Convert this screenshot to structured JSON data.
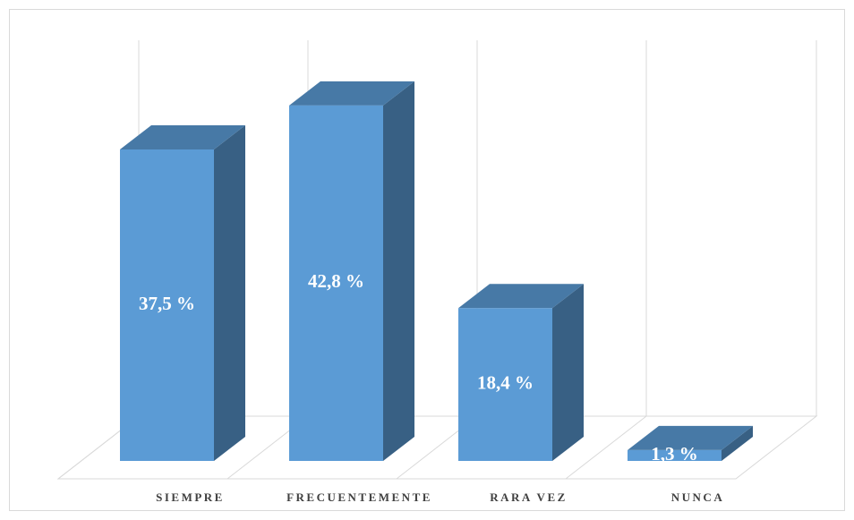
{
  "chart_data": {
    "type": "bar3d",
    "categories": [
      "SIEMPRE",
      "FRECUENTEMENTE",
      "RARA VEZ",
      "NUNCA"
    ],
    "values": [
      37.5,
      42.8,
      18.4,
      1.3
    ],
    "value_labels": [
      "37,5 %",
      "42,8 %",
      "18,4 %",
      "1,3 %"
    ],
    "color": "#5b9bd5"
  }
}
